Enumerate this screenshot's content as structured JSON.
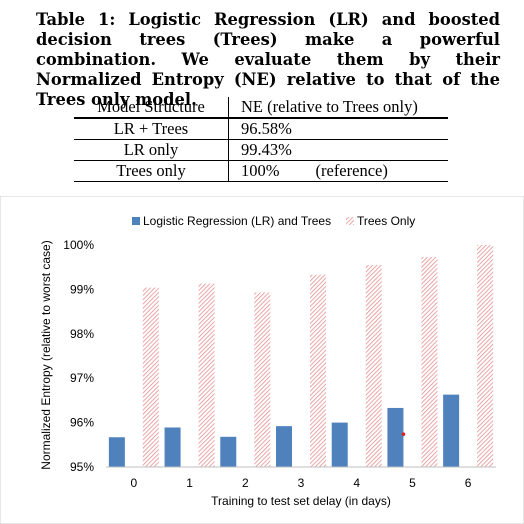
{
  "caption": "Table 1: Logistic Regression (LR) and boosted decision trees (Trees) make a powerful combination. We evaluate them by their Normalized Entropy (NE) relative to that of the Trees only model.",
  "table": {
    "headers": [
      "Model Structure",
      "NE (relative to Trees only)"
    ],
    "rows": [
      {
        "model": "LR + Trees",
        "ne": "96.58%",
        "note": ""
      },
      {
        "model": "LR only",
        "ne": "99.43%",
        "note": ""
      },
      {
        "model": "Trees only",
        "ne": "100%",
        "note": "(reference)"
      }
    ]
  },
  "chart_data": {
    "type": "bar",
    "xlabel": "Training to test set delay (in days)",
    "ylabel": "Normalized Entropy (relative to worst case)",
    "categories": [
      "0",
      "1",
      "2",
      "3",
      "4",
      "5",
      "6"
    ],
    "ylim": [
      95,
      100
    ],
    "yticks": [
      "95%",
      "96%",
      "97%",
      "98%",
      "99%",
      "100%"
    ],
    "grid": false,
    "legend_position": "top",
    "series": [
      {
        "name": "Logistic Regression (LR) and Trees",
        "color": "#4f81bd",
        "pattern": "solid",
        "values": [
          95.67,
          95.89,
          95.68,
          95.92,
          96.0,
          96.33,
          96.63
        ]
      },
      {
        "name": "Trees Only",
        "color": "#e8a1a1",
        "pattern": "hatched",
        "values": [
          99.04,
          99.13,
          98.93,
          99.33,
          99.55,
          99.73,
          100.0
        ]
      }
    ],
    "annotations": [
      {
        "type": "dot",
        "x": "5",
        "y": 95.74,
        "color": "#e02020"
      }
    ]
  }
}
